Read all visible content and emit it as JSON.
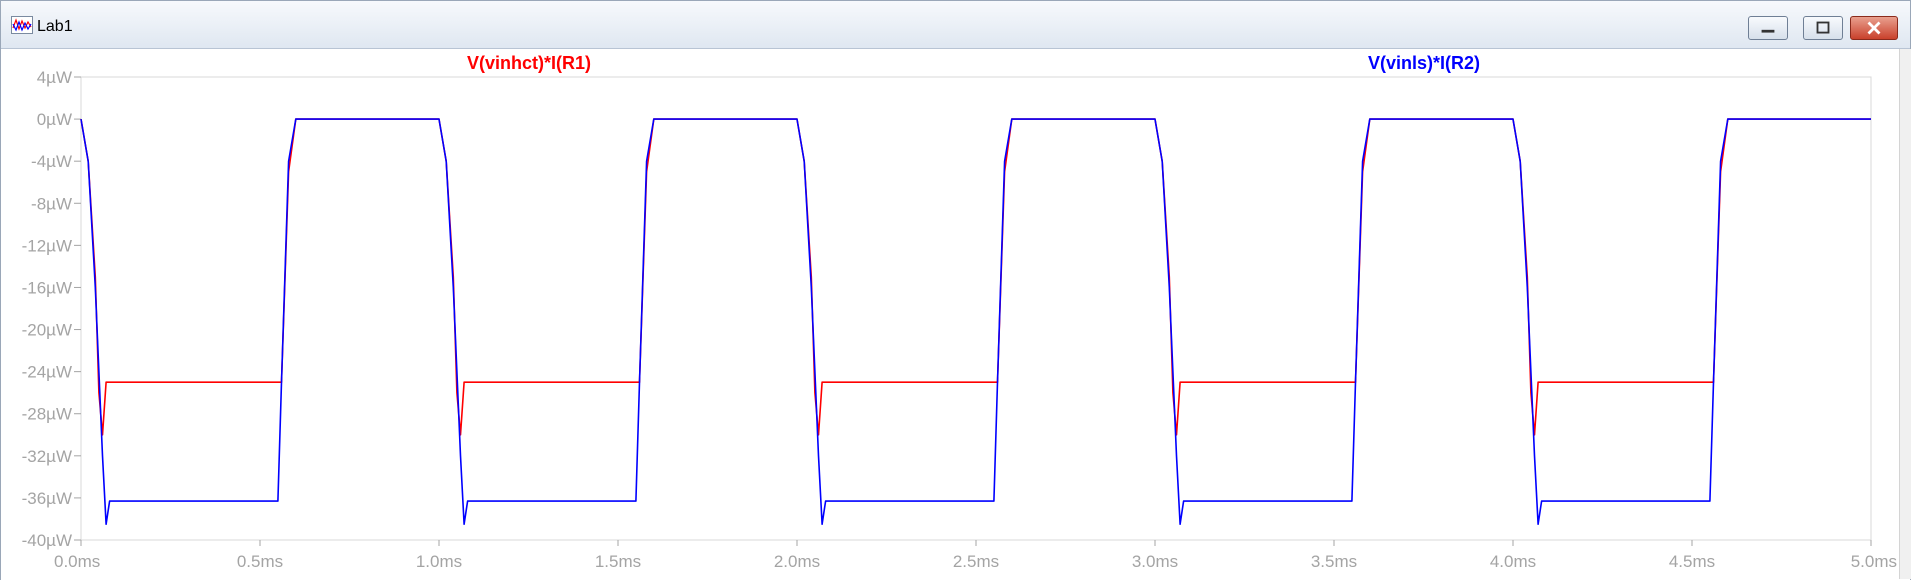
{
  "window": {
    "title": "Lab1",
    "icon": "waveform-icon"
  },
  "colors": {
    "series1": "#ff0000",
    "series2": "#0000ff",
    "axis": "#a4a4a4",
    "grid": "#d8d8d8"
  },
  "chart_data": {
    "type": "line",
    "title": "",
    "xlabel": "",
    "ylabel": "",
    "xlim": [
      0,
      5.0
    ],
    "ylim": [
      -40,
      4
    ],
    "x_unit": "ms",
    "y_unit": "µW",
    "x_ticks": [
      "0.0ms",
      "0.5ms",
      "1.0ms",
      "1.5ms",
      "2.0ms",
      "2.5ms",
      "3.0ms",
      "3.5ms",
      "4.0ms",
      "4.5ms",
      "5.0ms"
    ],
    "y_ticks": [
      "4µW",
      "0µW",
      "-4µW",
      "-8µW",
      "-12µW",
      "-16µW",
      "-20µW",
      "-24µW",
      "-28µW",
      "-32µW",
      "-36µW",
      "-40µW"
    ],
    "x_tick_values": [
      0,
      0.5,
      1.0,
      1.5,
      2.0,
      2.5,
      3.0,
      3.5,
      4.0,
      4.5,
      5.0
    ],
    "y_tick_values": [
      4,
      0,
      -4,
      -8,
      -12,
      -16,
      -20,
      -24,
      -28,
      -32,
      -36,
      -40
    ],
    "grid": false,
    "legend": "top",
    "period_ms": 1.0,
    "series": [
      {
        "name": "V(vinhct)*I(R1)",
        "color": "#ff0000",
        "x": [
          0.0,
          0.02,
          0.04,
          0.05,
          0.06,
          0.07,
          0.08,
          0.56,
          0.58,
          0.6,
          1.0,
          1.02,
          1.04,
          1.05,
          1.06,
          1.07,
          1.08,
          1.56,
          1.58,
          1.6,
          2.0,
          2.02,
          2.04,
          2.05,
          2.06,
          2.07,
          2.08,
          2.56,
          2.58,
          2.6,
          3.0,
          3.02,
          3.04,
          3.05,
          3.06,
          3.07,
          3.08,
          3.56,
          3.58,
          3.6,
          4.0,
          4.02,
          4.04,
          4.05,
          4.06,
          4.07,
          4.08,
          4.56,
          4.58,
          4.6,
          5.0
        ],
        "values": [
          0,
          -4,
          -15,
          -26,
          -30,
          -25,
          -25,
          -25,
          -5,
          0,
          0,
          -4,
          -15,
          -26,
          -30,
          -25,
          -25,
          -25,
          -5,
          0,
          0,
          -4,
          -15,
          -26,
          -30,
          -25,
          -25,
          -25,
          -5,
          0,
          0,
          -4,
          -15,
          -26,
          -30,
          -25,
          -25,
          -25,
          -5,
          0,
          0,
          -4,
          -15,
          -26,
          -30,
          -25,
          -25,
          -25,
          -5,
          0,
          0
        ]
      },
      {
        "name": "V(vinls)*I(R2)",
        "color": "#0000ff",
        "x": [
          0.0,
          0.02,
          0.04,
          0.06,
          0.07,
          0.08,
          0.55,
          0.56,
          0.58,
          0.6,
          1.0,
          1.02,
          1.04,
          1.06,
          1.07,
          1.08,
          1.55,
          1.56,
          1.58,
          1.6,
          2.0,
          2.02,
          2.04,
          2.06,
          2.07,
          2.08,
          2.55,
          2.56,
          2.58,
          2.6,
          3.0,
          3.02,
          3.04,
          3.06,
          3.07,
          3.08,
          3.55,
          3.56,
          3.58,
          3.6,
          4.0,
          4.02,
          4.04,
          4.06,
          4.07,
          4.08,
          4.55,
          4.56,
          4.58,
          4.6,
          5.0
        ],
        "values": [
          0,
          -4,
          -16,
          -32,
          -38.5,
          -36.3,
          -36.3,
          -25,
          -4,
          0,
          0,
          -4,
          -16,
          -32,
          -38.5,
          -36.3,
          -36.3,
          -25,
          -4,
          0,
          0,
          -4,
          -16,
          -32,
          -38.5,
          -36.3,
          -36.3,
          -25,
          -4,
          0,
          0,
          -4,
          -16,
          -32,
          -38.5,
          -36.3,
          -36.3,
          -25,
          -4,
          0,
          0,
          -4,
          -16,
          -32,
          -38.5,
          -36.3,
          -36.3,
          -25,
          -4,
          0,
          0
        ]
      }
    ]
  }
}
